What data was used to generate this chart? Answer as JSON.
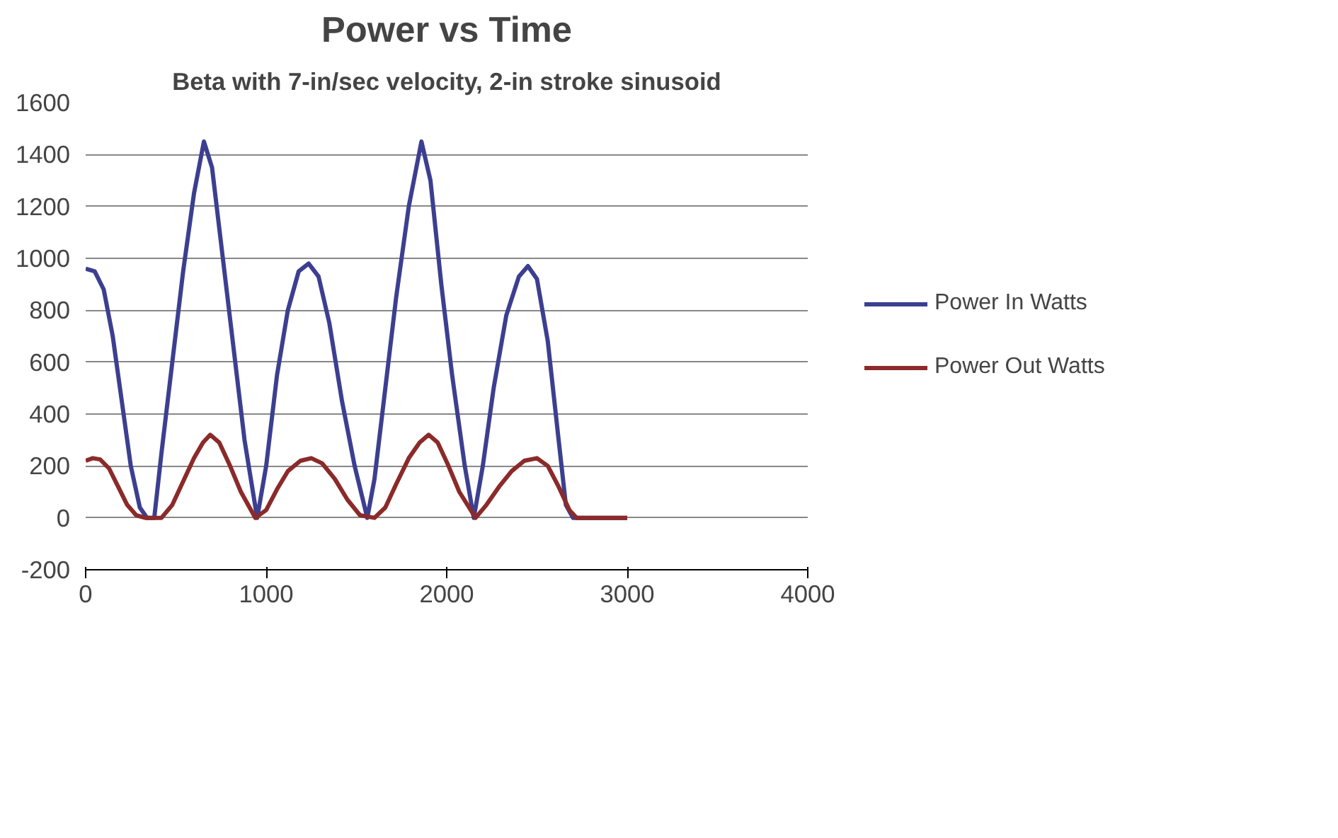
{
  "chart_data": {
    "type": "line",
    "title": "Power vs Time",
    "subtitle": "Beta with 7-in/sec velocity, 2-in stroke sinusoid",
    "xlim": [
      0,
      4000
    ],
    "xticks": [
      0,
      1000,
      2000,
      3000,
      4000
    ],
    "ylim": [
      -200,
      1600
    ],
    "yticks": [
      -200,
      0,
      200,
      400,
      600,
      800,
      1000,
      1200,
      1400,
      1600
    ],
    "grid": "y",
    "legend": "right",
    "marker": "none",
    "line_style": "solid",
    "series": [
      {
        "name": "Power In Watts",
        "color": "#3c3f90",
        "x": [
          0,
          50,
          100,
          150,
          200,
          250,
          300,
          340,
          380,
          420,
          480,
          540,
          600,
          655,
          700,
          760,
          820,
          880,
          950,
          1000,
          1060,
          1120,
          1180,
          1235,
          1290,
          1350,
          1420,
          1490,
          1560,
          1600,
          1660,
          1720,
          1790,
          1860,
          1910,
          1970,
          2030,
          2100,
          2150,
          2200,
          2260,
          2330,
          2400,
          2450,
          2500,
          2560,
          2620,
          2660,
          2700,
          3000
        ],
        "values": [
          960,
          950,
          880,
          700,
          450,
          200,
          40,
          0,
          0,
          250,
          600,
          950,
          1250,
          1450,
          1350,
          1000,
          650,
          300,
          0,
          200,
          550,
          800,
          950,
          980,
          930,
          750,
          450,
          200,
          0,
          150,
          500,
          850,
          1200,
          1450,
          1300,
          900,
          550,
          200,
          0,
          200,
          500,
          780,
          930,
          970,
          920,
          680,
          300,
          50,
          0,
          0
        ]
      },
      {
        "name": "Power Out Watts",
        "color": "#8b2a2a",
        "x": [
          0,
          40,
          80,
          130,
          180,
          230,
          280,
          330,
          420,
          480,
          540,
          600,
          650,
          690,
          740,
          800,
          860,
          940,
          1000,
          1060,
          1120,
          1190,
          1250,
          1310,
          1380,
          1450,
          1520,
          1600,
          1660,
          1720,
          1790,
          1850,
          1900,
          1950,
          2010,
          2070,
          2160,
          2220,
          2290,
          2360,
          2430,
          2500,
          2560,
          2620,
          2680,
          2720,
          3000
        ],
        "values": [
          220,
          230,
          225,
          190,
          120,
          50,
          10,
          0,
          0,
          50,
          140,
          230,
          290,
          320,
          290,
          200,
          100,
          0,
          30,
          110,
          180,
          220,
          230,
          210,
          150,
          70,
          10,
          0,
          40,
          130,
          230,
          290,
          320,
          290,
          200,
          100,
          0,
          50,
          120,
          180,
          220,
          230,
          200,
          120,
          30,
          0,
          0
        ]
      }
    ]
  }
}
